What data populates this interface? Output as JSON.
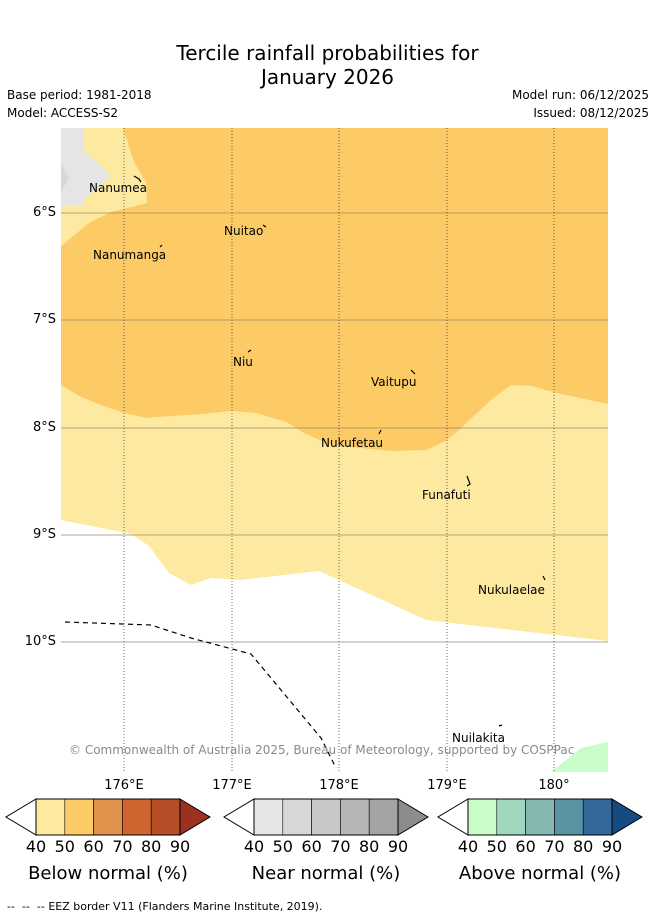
{
  "title_line1": "Tercile rainfall probabilities for",
  "title_line2": "January 2026",
  "base_period": "Base period: 1981-2018",
  "model": "Model: ACCESS-S2",
  "model_run": "Model run: 06/12/2025",
  "issued": "Issued: 08/12/2025",
  "lat_labels": [
    "6°S",
    "7°S",
    "8°S",
    "9°S",
    "10°S"
  ],
  "lon_labels": [
    "176°E",
    "177°E",
    "178°E",
    "179°E",
    "180°"
  ],
  "places": {
    "nanumea": "Nanumea",
    "nuitao": "Nuitao",
    "nanumanga": "Nanumanga",
    "niu": "Niu",
    "vaitupu": "Vaitupu",
    "nukufetau": "Nukufetau",
    "funafuti": "Funafuti",
    "nukulaelae": "Nukulaelae",
    "nuilakita": "Nuilakita"
  },
  "copyright": "© Commonwealth of Australia 2025, Bureau of Meteorology, supported by COSPPac",
  "legend": {
    "tick_values": [
      "40",
      "50",
      "60",
      "70",
      "80",
      "90"
    ],
    "below": {
      "label": "Below normal (%)",
      "colors": [
        "#fee9a0",
        "#fdcb65",
        "#e0924a",
        "#cf6530",
        "#b54e27",
        "#9b3220"
      ]
    },
    "near": {
      "label": "Near normal (%)",
      "colors": [
        "#e5e5e5",
        "#d7d7d7",
        "#c8c8c8",
        "#b6b6b6",
        "#a3a3a3",
        "#8c8c8c"
      ]
    },
    "above": {
      "label": "Above normal (%)",
      "colors": [
        "#c8fcc8",
        "#a1d8bd",
        "#84b8b1",
        "#5b92a1",
        "#336899",
        "#164b82"
      ]
    }
  },
  "eez_note": "EEZ border V11 (Flanders Marine Institute, 2019).",
  "map_colors": {
    "below_40": "#fee9a0",
    "below_50": "#fdcb65",
    "near_40": "#e5e5e5",
    "above_40": "#c8fcc8"
  }
}
